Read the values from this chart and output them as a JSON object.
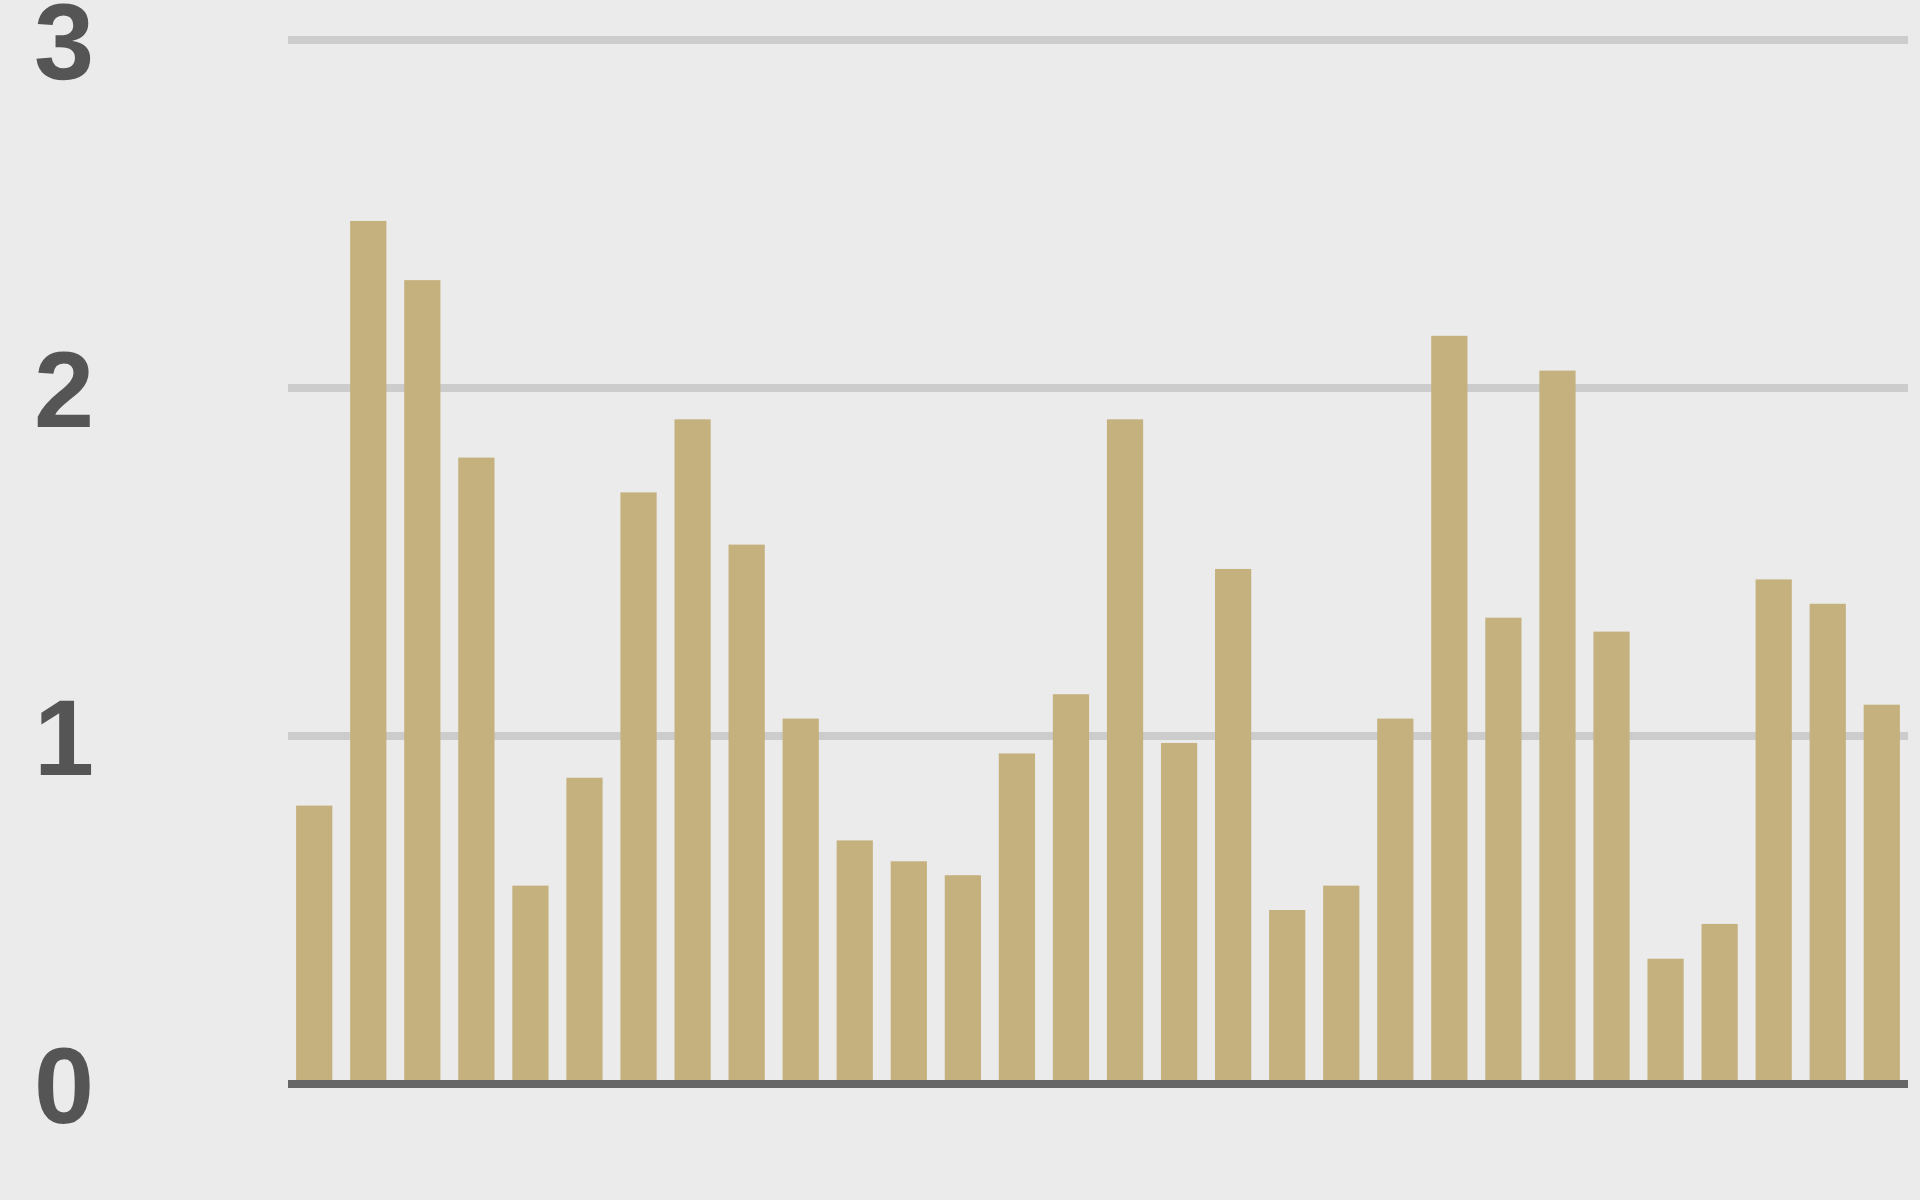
{
  "chart_data": {
    "type": "bar",
    "categories": [
      null,
      null,
      null,
      null,
      null,
      null,
      null,
      null,
      null,
      null,
      null,
      null,
      null,
      null,
      null,
      null,
      null,
      null,
      null,
      null,
      null,
      null,
      null,
      null,
      null,
      null,
      null,
      null,
      null,
      null
    ],
    "values": [
      0.8,
      2.48,
      2.31,
      1.8,
      0.57,
      0.88,
      1.7,
      1.91,
      1.55,
      1.05,
      0.7,
      0.64,
      0.6,
      0.95,
      1.12,
      1.91,
      0.98,
      1.48,
      0.5,
      0.57,
      1.05,
      2.15,
      1.34,
      2.05,
      1.3,
      0.36,
      0.46,
      1.45,
      1.38,
      1.09
    ],
    "color": "#c5b17e",
    "ylim": [
      0,
      3
    ],
    "yticks": [
      0,
      1,
      2,
      3
    ],
    "grid": "y"
  }
}
